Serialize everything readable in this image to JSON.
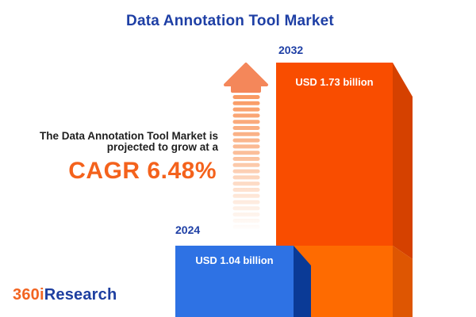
{
  "header": {
    "title": "Data Annotation Tool Market"
  },
  "annotation": {
    "line1": "The Data Annotation Tool Market is",
    "line2": "projected to grow at a",
    "cagr_text": "CAGR 6.48%"
  },
  "bars": {
    "bar2024": {
      "year": "2024",
      "value_label": "USD 1.04 billion",
      "front_color": "#2E72E4",
      "side_color": "#0A3A96"
    },
    "bar2032": {
      "year": "2032",
      "value_label": "USD 1.73 billion",
      "front_color_upper": "#F94D00",
      "front_color_lower": "#FE6B01",
      "side_color_upper": "#D54100",
      "side_color_lower": "#DE5602"
    }
  },
  "arrow": {
    "head_color": "#F4875A",
    "gradient_top": "#F9975F",
    "gradient_bottom": "#FFFFFF"
  },
  "logo": {
    "part1": "360i",
    "part2": "Research",
    "part1_color": "#F26522",
    "part2_color": "#1E3FA0"
  },
  "colors": {
    "title_blue": "#1E3FA5",
    "cagr_orange": "#F4621C",
    "text_dark": "#1F1F1F"
  },
  "chart_data": {
    "type": "bar",
    "title": "Data Annotation Tool Market",
    "categories": [
      "2024",
      "2032"
    ],
    "values": [
      1.04,
      1.73
    ],
    "unit": "USD billion",
    "value_labels": [
      "USD 1.04 billion",
      "USD 1.73 billion"
    ],
    "bar_colors": [
      "#2E72E4",
      "#F94D00"
    ],
    "cagr_percent": 6.48,
    "annotation": "The Data Annotation Tool Market is projected to grow at a CAGR 6.48%",
    "legend_position": "none",
    "grid": false,
    "style": "3d-infographic, bars cropped at bottom edge, growth arrow between annotation and bars"
  }
}
